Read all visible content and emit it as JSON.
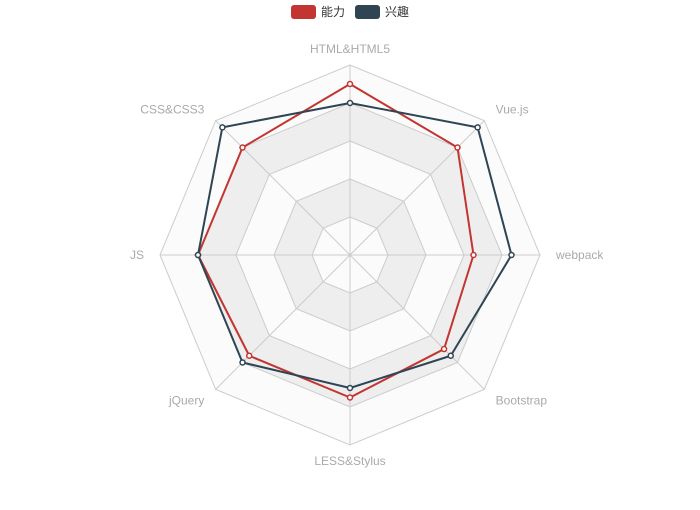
{
  "colors": {
    "ability": "#c23531",
    "interest": "#2f4554",
    "split_line": "#cccccc",
    "split_area_light": "#fbfbfb",
    "split_area_dark": "#eeeeee",
    "label": "#aaaaaa"
  },
  "chart_data": {
    "type": "radar",
    "title": "",
    "legend": {
      "position": "top-center",
      "items": [
        "能力",
        "兴趣"
      ]
    },
    "indicators": [
      "HTML&HTML5",
      "Vue.js",
      "webpack",
      "Bootstrap",
      "LESS&Stylus",
      "jQuery",
      "JS",
      "CSS&CSS3"
    ],
    "max": 100,
    "split_number": 5,
    "series": [
      {
        "name": "能力",
        "color": "#c23531",
        "values": [
          90,
          80,
          65,
          70,
          75,
          75,
          80,
          80
        ]
      },
      {
        "name": "兴趣",
        "color": "#2f4554",
        "values": [
          80,
          95,
          85,
          75,
          70,
          80,
          80,
          95
        ]
      }
    ]
  }
}
